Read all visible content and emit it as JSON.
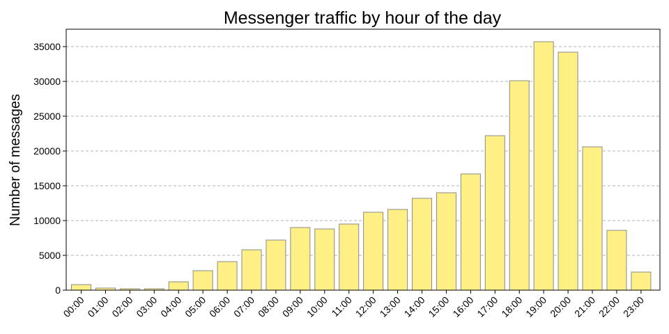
{
  "chart_data": {
    "type": "bar",
    "title": "Messenger traffic by hour of the day",
    "xlabel": "",
    "ylabel": "Number of messages",
    "categories": [
      "00:00",
      "01:00",
      "02:00",
      "03:00",
      "04:00",
      "05:00",
      "06:00",
      "07:00",
      "08:00",
      "09:00",
      "10:00",
      "11:00",
      "12:00",
      "13:00",
      "14:00",
      "15:00",
      "16:00",
      "17:00",
      "18:00",
      "19:00",
      "20:00",
      "21:00",
      "22:00",
      "23:00"
    ],
    "values": [
      800,
      300,
      200,
      200,
      1200,
      2800,
      4100,
      5800,
      7200,
      9000,
      8800,
      9500,
      11200,
      11600,
      13200,
      14000,
      16700,
      22200,
      30100,
      35700,
      34200,
      20600,
      8600,
      2600
    ],
    "ylim": [
      0,
      37500
    ],
    "yticks": [
      0,
      5000,
      10000,
      15000,
      20000,
      25000,
      30000,
      35000
    ],
    "grid": "y-dashed",
    "bar_color": "#fff085",
    "bar_edge_color": "#8a8a8a"
  }
}
